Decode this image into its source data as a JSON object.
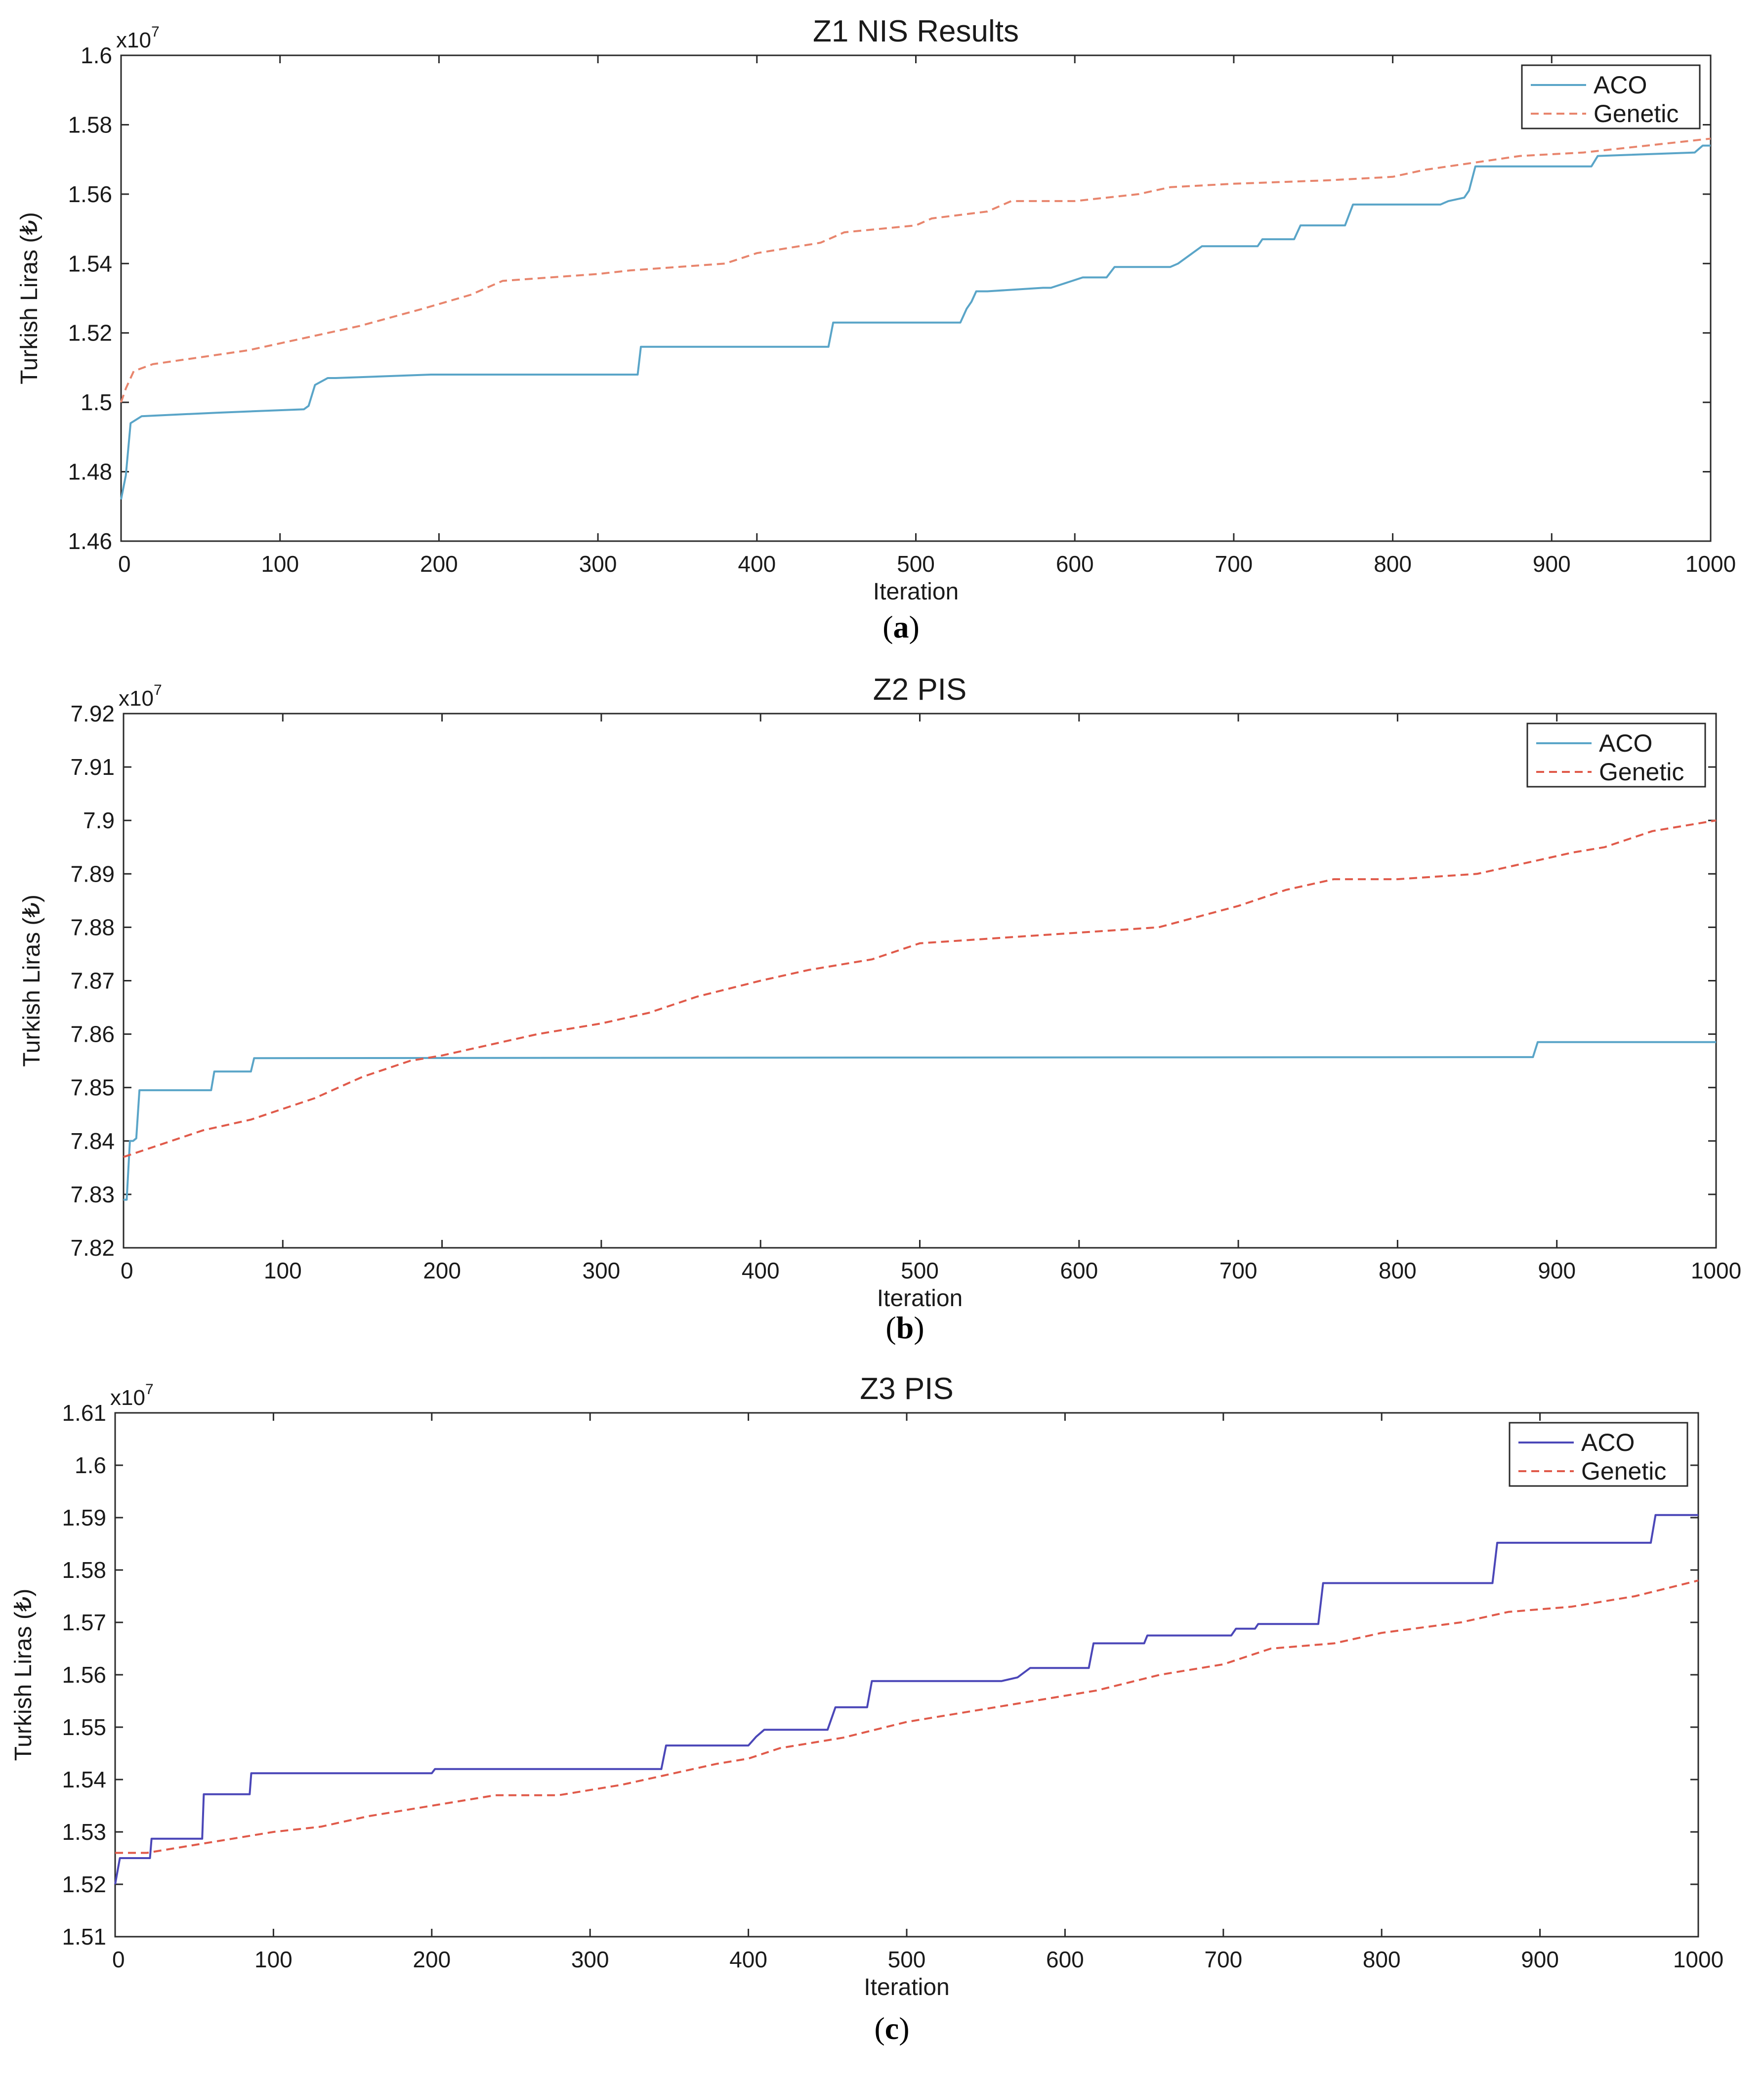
{
  "chart_data": [
    {
      "type": "line",
      "title": "Z1 NIS Results",
      "xlabel": "Iteration",
      "ylabel": "Turkish Liras (₺)",
      "exponent_base": "x10",
      "exponent_power": "7",
      "xlim": [
        0,
        1000
      ],
      "ylim": [
        1.46,
        1.6
      ],
      "xticks": [
        "0",
        "100",
        "200",
        "300",
        "400",
        "500",
        "600",
        "700",
        "800",
        "900",
        "1000"
      ],
      "yticks": [
        "1.46",
        "1.48",
        "1.5",
        "1.52",
        "1.54",
        "1.56",
        "1.58",
        "1.6"
      ],
      "legend_position": "top-right",
      "caption_label": "a",
      "series": [
        {
          "name": "ACO",
          "color": "#5aa5c8",
          "dash": "solid",
          "x": [
            0,
            3,
            6,
            13,
            60,
            115,
            118,
            122,
            130,
            135,
            195,
            265,
            325,
            327,
            445,
            448,
            528,
            532,
            535,
            538,
            545,
            580,
            585,
            605,
            620,
            625,
            660,
            665,
            680,
            715,
            718,
            738,
            742,
            770,
            775,
            830,
            835,
            845,
            848,
            852,
            925,
            929,
            990,
            995,
            1000
          ],
          "y": [
            1.472,
            1.479,
            1.494,
            1.496,
            1.497,
            1.498,
            1.499,
            1.505,
            1.507,
            1.507,
            1.508,
            1.508,
            1.508,
            1.516,
            1.516,
            1.523,
            1.523,
            1.527,
            1.529,
            1.532,
            1.532,
            1.533,
            1.533,
            1.536,
            1.536,
            1.539,
            1.539,
            1.54,
            1.545,
            1.545,
            1.547,
            1.547,
            1.551,
            1.551,
            1.557,
            1.557,
            1.558,
            1.559,
            1.561,
            1.568,
            1.568,
            1.571,
            1.572,
            1.574,
            1.574
          ]
        },
        {
          "name": "Genetic",
          "color": "#e8856d",
          "dash": "dashed",
          "x": [
            0,
            3,
            8,
            20,
            50,
            80,
            100,
            150,
            190,
            220,
            240,
            300,
            320,
            380,
            400,
            440,
            455,
            500,
            510,
            545,
            560,
            600,
            640,
            660,
            700,
            760,
            800,
            820,
            850,
            880,
            920,
            960,
            1000
          ],
          "y": [
            1.5,
            1.504,
            1.509,
            1.511,
            1.513,
            1.515,
            1.517,
            1.522,
            1.527,
            1.531,
            1.535,
            1.537,
            1.538,
            1.54,
            1.543,
            1.546,
            1.549,
            1.551,
            1.553,
            1.555,
            1.558,
            1.558,
            1.56,
            1.562,
            1.563,
            1.564,
            1.565,
            1.567,
            1.569,
            1.571,
            1.572,
            1.574,
            1.576
          ]
        }
      ]
    },
    {
      "type": "line",
      "title": "Z2 PIS",
      "xlabel": "Iteration",
      "ylabel": "Turkish Liras (₺)",
      "exponent_base": "x10",
      "exponent_power": "7",
      "xlim": [
        0,
        1000
      ],
      "ylim": [
        7.82,
        7.92
      ],
      "xticks": [
        "0",
        "100",
        "200",
        "300",
        "400",
        "500",
        "600",
        "700",
        "800",
        "900",
        "1000"
      ],
      "yticks": [
        "7.82",
        "7.83",
        "7.84",
        "7.85",
        "7.86",
        "7.87",
        "7.88",
        "7.89",
        "7.9",
        "7.91",
        "7.92"
      ],
      "legend_position": "top-right",
      "caption_label": "b",
      "series": [
        {
          "name": "ACO",
          "color": "#5aa5c8",
          "dash": "solid",
          "x": [
            0,
            2,
            4,
            6,
            8,
            10,
            55,
            57,
            80,
            82,
            410,
            885,
            888,
            1000
          ],
          "y": [
            7.829,
            7.829,
            7.84,
            7.84,
            7.8405,
            7.8495,
            7.8495,
            7.853,
            7.853,
            7.8555,
            7.8556,
            7.8557,
            7.8585,
            7.8585
          ],
          "note": "step"
        },
        {
          "name": "Genetic",
          "color": "#e05a4a",
          "dash": "dashed",
          "x": [
            0,
            20,
            50,
            80,
            100,
            120,
            150,
            180,
            200,
            230,
            260,
            300,
            330,
            360,
            400,
            430,
            470,
            500,
            550,
            600,
            650,
            700,
            730,
            760,
            800,
            850,
            880,
            910,
            930,
            960,
            1000
          ],
          "y": [
            7.837,
            7.839,
            7.842,
            7.844,
            7.846,
            7.848,
            7.852,
            7.855,
            7.856,
            7.858,
            7.86,
            7.862,
            7.864,
            7.867,
            7.87,
            7.872,
            7.874,
            7.877,
            7.878,
            7.879,
            7.88,
            7.884,
            7.887,
            7.889,
            7.889,
            7.89,
            7.892,
            7.894,
            7.895,
            7.898,
            7.9
          ]
        }
      ]
    },
    {
      "type": "line",
      "title": "Z3 PIS",
      "xlabel": "Iteration",
      "ylabel": "Turkish Liras (₺)",
      "exponent_base": "x10",
      "exponent_power": "7",
      "xlim": [
        0,
        1000
      ],
      "ylim": [
        1.51,
        1.61
      ],
      "xticks": [
        "0",
        "100",
        "200",
        "300",
        "400",
        "500",
        "600",
        "700",
        "800",
        "900",
        "1000"
      ],
      "yticks": [
        "1.51",
        "1.52",
        "1.53",
        "1.54",
        "1.55",
        "1.56",
        "1.57",
        "1.58",
        "1.59",
        "1.6",
        "1.61"
      ],
      "legend_position": "top-right",
      "caption_label": "c",
      "series": [
        {
          "name": "ACO",
          "color": "#4b47b8",
          "dash": "solid",
          "x": [
            0,
            3,
            22,
            23,
            55,
            56,
            85,
            86,
            200,
            202,
            345,
            348,
            400,
            405,
            410,
            450,
            455,
            475,
            478,
            560,
            570,
            578,
            615,
            618,
            650,
            652,
            705,
            708,
            720,
            722,
            760,
            763,
            870,
            873,
            970,
            973,
            1000
          ],
          "y": [
            1.52,
            1.525,
            1.525,
            1.5287,
            1.5287,
            1.5372,
            1.5372,
            1.5412,
            1.5412,
            1.542,
            1.542,
            1.5465,
            1.5465,
            1.5482,
            1.5495,
            1.5495,
            1.5538,
            1.5538,
            1.5588,
            1.5588,
            1.5595,
            1.5613,
            1.5613,
            1.566,
            1.566,
            1.5675,
            1.5675,
            1.5688,
            1.5688,
            1.5697,
            1.5697,
            1.5775,
            1.5775,
            1.5852,
            1.5852,
            1.5905,
            1.5905
          ],
          "note": "step"
        },
        {
          "name": "Genetic",
          "color": "#e05a4a",
          "dash": "dashed",
          "x": [
            0,
            20,
            40,
            60,
            80,
            100,
            130,
            160,
            200,
            240,
            280,
            320,
            350,
            380,
            400,
            420,
            460,
            500,
            540,
            580,
            620,
            660,
            700,
            730,
            770,
            800,
            850,
            880,
            920,
            960,
            1000
          ],
          "y": [
            1.526,
            1.526,
            1.527,
            1.528,
            1.529,
            1.53,
            1.531,
            1.533,
            1.535,
            1.537,
            1.537,
            1.539,
            1.541,
            1.543,
            1.544,
            1.546,
            1.548,
            1.551,
            1.553,
            1.555,
            1.557,
            1.56,
            1.562,
            1.565,
            1.566,
            1.568,
            1.57,
            1.572,
            1.573,
            1.575,
            1.578
          ]
        }
      ]
    }
  ]
}
